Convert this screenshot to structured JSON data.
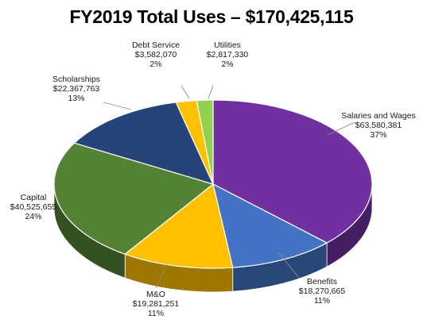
{
  "chart_data": {
    "type": "pie",
    "title": "FY2019 Total Uses – $170,425,115",
    "slices": [
      {
        "label": "Salaries and Wages",
        "amount": "$63,580,381",
        "percent_label": "37%",
        "value": 63580381,
        "color": "#7030a0"
      },
      {
        "label": "Benefits",
        "amount": "$18,270,665",
        "percent_label": "11%",
        "value": 18270665,
        "color": "#4472c4"
      },
      {
        "label": "M&O",
        "amount": "$19,281,251",
        "percent_label": "11%",
        "value": 19281251,
        "color": "#ffc000"
      },
      {
        "label": "Capital",
        "amount": "$40,525,655",
        "percent_label": "24%",
        "value": 40525655,
        "color": "#548235"
      },
      {
        "label": "Scholarships",
        "amount": "$22,367,763",
        "percent_label": "13%",
        "value": 22367763,
        "color": "#264478"
      },
      {
        "label": "Debt Service",
        "amount": "$3,582,070",
        "percent_label": "2%",
        "value": 3582070,
        "color": "#ffc000"
      },
      {
        "label": "Utilities",
        "amount": "$2,817,330",
        "percent_label": "2%",
        "value": 2817330,
        "color": "#92d050"
      }
    ]
  }
}
